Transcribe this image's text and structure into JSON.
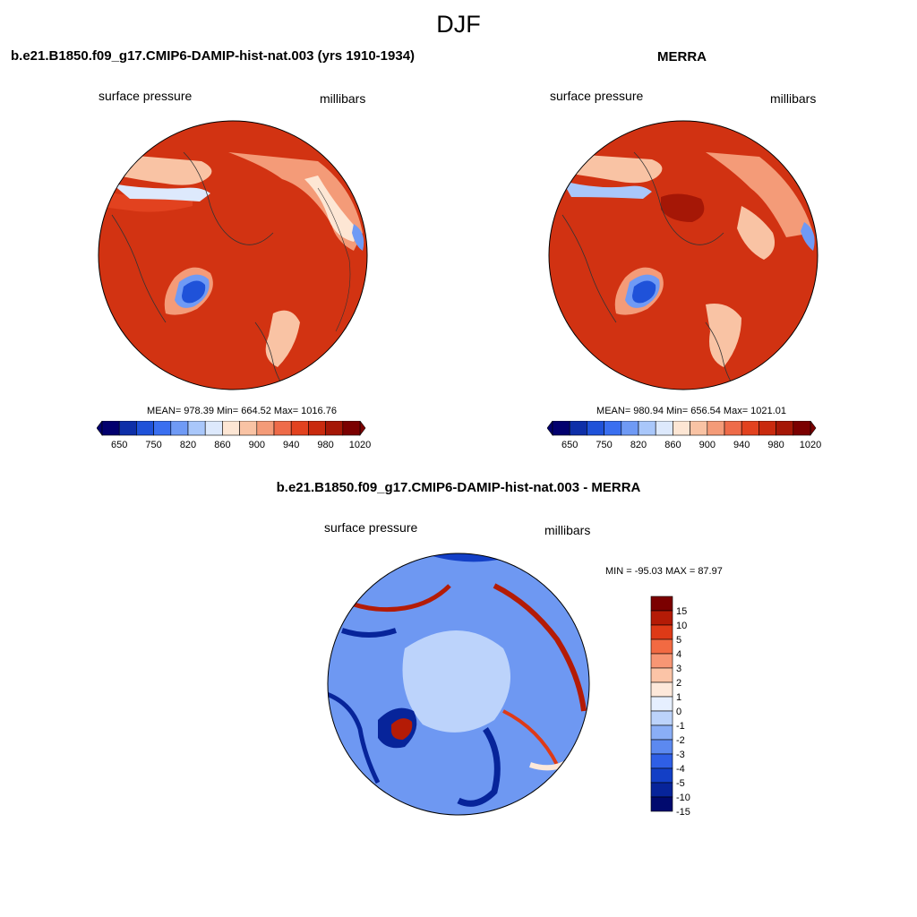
{
  "title": "DJF",
  "panels": [
    {
      "title": "b.e21.B1850.f09_g17.CMIP6-DAMIP-hist-nat.003 (yrs 1910-1934)",
      "left_label": "surface pressure",
      "right_label": "millibars",
      "stats": "MEAN= 978.39  Min= 664.52  Max= 1016.76"
    },
    {
      "title": "MERRA",
      "left_label": "surface pressure",
      "right_label": "millibars",
      "stats": "MEAN= 980.94  Min= 656.54  Max= 1021.01"
    },
    {
      "title": "b.e21.B1850.f09_g17.CMIP6-DAMIP-hist-nat.003 - MERRA",
      "left_label": "surface pressure",
      "right_label": "millibars",
      "stats": "MIN = -95.03 MAX =  87.97"
    }
  ],
  "colorbar_main": {
    "colors": [
      "#02006e",
      "#0e2fa8",
      "#1f52d9",
      "#3a6ff0",
      "#6f9af5",
      "#a9c7fa",
      "#dde9fc",
      "#fde6d4",
      "#f9c3a4",
      "#f49b78",
      "#ee6b49",
      "#e2421f",
      "#c92a0e",
      "#a51706",
      "#7b0000"
    ],
    "tick_labels": [
      "650",
      "750",
      "820",
      "860",
      "900",
      "940",
      "980",
      "1020"
    ]
  },
  "colorbar_diff": {
    "colors": [
      "#7b0000",
      "#b41b06",
      "#de3a17",
      "#f26a42",
      "#f79674",
      "#fbc4a7",
      "#fde8da",
      "#e6efff",
      "#bcd3fb",
      "#8aaef6",
      "#5c89f0",
      "#2f5fe6",
      "#133fc6",
      "#07249a",
      "#010a6e"
    ],
    "tick_labels": [
      "15",
      "10",
      "5",
      "4",
      "3",
      "2",
      "1",
      "0",
      "-1",
      "-2",
      "-3",
      "-4",
      "-5",
      "-10",
      "-15"
    ]
  },
  "chart_data": [
    {
      "type": "heatmap",
      "title": "b.e21.B1850.f09_g17.CMIP6-DAMIP-hist-nat.003 (yrs 1910-1934)",
      "variable": "surface pressure",
      "units": "millibars",
      "projection": "polar stereographic (north pole)",
      "mean": 978.39,
      "min": 664.52,
      "max": 1016.76,
      "contour_levels": [
        650,
        700,
        750,
        780,
        820,
        840,
        860,
        880,
        900,
        920,
        940,
        960,
        980,
        1000,
        1020
      ]
    },
    {
      "type": "heatmap",
      "title": "MERRA",
      "variable": "surface pressure",
      "units": "millibars",
      "projection": "polar stereographic (north pole)",
      "mean": 980.94,
      "min": 656.54,
      "max": 1021.01,
      "contour_levels": [
        650,
        700,
        750,
        780,
        820,
        840,
        860,
        880,
        900,
        920,
        940,
        960,
        980,
        1000,
        1020
      ]
    },
    {
      "type": "heatmap",
      "title": "b.e21.B1850.f09_g17.CMIP6-DAMIP-hist-nat.003 - MERRA",
      "variable": "surface pressure",
      "units": "millibars",
      "projection": "polar stereographic (north pole)",
      "min": -95.03,
      "max": 87.97,
      "contour_levels": [
        -15,
        -10,
        -5,
        -4,
        -3,
        -2,
        -1,
        0,
        1,
        2,
        3,
        4,
        5,
        10,
        15
      ]
    }
  ]
}
